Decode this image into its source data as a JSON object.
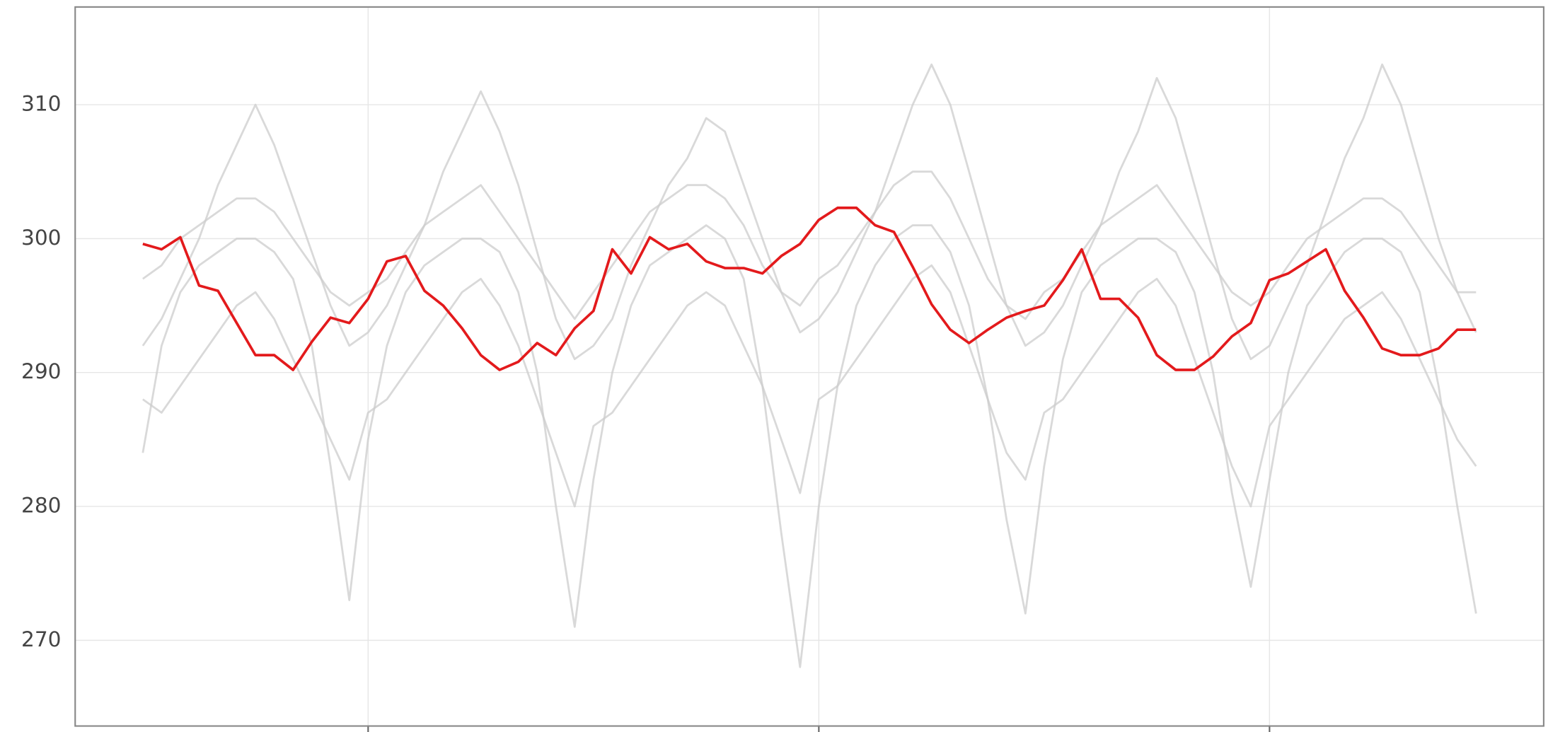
{
  "chart_data": {
    "type": "line",
    "x": [
      0,
      1,
      2,
      3,
      4,
      5,
      6,
      7,
      8,
      9,
      10,
      11,
      12,
      13,
      14,
      15,
      16,
      17,
      18,
      19,
      20,
      21,
      22,
      23,
      24,
      25,
      26,
      27,
      28,
      29,
      30,
      31,
      32,
      33,
      34,
      35,
      36,
      37,
      38,
      39,
      40,
      41,
      42,
      43,
      44,
      45,
      46,
      47,
      48,
      49,
      50,
      51,
      52,
      53,
      54,
      55,
      56,
      57,
      58,
      59,
      60,
      61,
      62,
      63,
      64,
      65,
      66,
      67,
      68,
      69,
      70,
      71
    ],
    "xlim": [
      -3.6,
      74.6
    ],
    "xticks": [
      12,
      36,
      60
    ],
    "ylim": [
      263.6,
      317.3
    ],
    "yticks": [
      270,
      280,
      290,
      300,
      310
    ],
    "grid": true,
    "series": [
      {
        "color": "#cccccc",
        "values": [
          292,
          294,
          297,
          300,
          304,
          307,
          310,
          307,
          303,
          299,
          295,
          292,
          293,
          295,
          298,
          301,
          305,
          308,
          311,
          308,
          304,
          299,
          294,
          291,
          292,
          294,
          298,
          301,
          304,
          306,
          309,
          308,
          304,
          300,
          296,
          293,
          294,
          296,
          299,
          302,
          306,
          310,
          313,
          310,
          305,
          300,
          295,
          292,
          293,
          295,
          298,
          301,
          305,
          308,
          312,
          309,
          304,
          299,
          294,
          291,
          292,
          295,
          298,
          302,
          306,
          309,
          313,
          310,
          305,
          300,
          296,
          293
        ]
      },
      {
        "color": "#cccccc",
        "values": [
          284,
          292,
          296,
          298,
          299,
          300,
          300,
          299,
          297,
          292,
          283,
          273,
          285,
          292,
          296,
          298,
          299,
          300,
          300,
          299,
          296,
          290,
          280,
          271,
          282,
          290,
          295,
          298,
          299,
          300,
          301,
          300,
          297,
          289,
          278,
          268,
          280,
          289,
          295,
          298,
          300,
          301,
          301,
          299,
          295,
          288,
          279,
          272,
          283,
          291,
          296,
          298,
          299,
          300,
          300,
          299,
          296,
          290,
          281,
          274,
          282,
          290,
          295,
          297,
          299,
          300,
          300,
          299,
          296,
          289,
          280,
          272
        ]
      },
      {
        "color": "#cccccc",
        "values": [
          297,
          298,
          300,
          301,
          302,
          303,
          303,
          302,
          300,
          298,
          296,
          295,
          296,
          297,
          299,
          301,
          302,
          303,
          304,
          302,
          300,
          298,
          296,
          294,
          296,
          298,
          300,
          302,
          303,
          304,
          304,
          303,
          301,
          298,
          296,
          295,
          297,
          298,
          300,
          302,
          304,
          305,
          305,
          303,
          300,
          297,
          295,
          294,
          296,
          297,
          299,
          301,
          302,
          303,
          304,
          302,
          300,
          298,
          296,
          295,
          296,
          298,
          300,
          301,
          302,
          303,
          303,
          302,
          300,
          298,
          296,
          296
        ]
      },
      {
        "color": "#cccccc",
        "values": [
          288,
          287,
          289,
          291,
          293,
          295,
          296,
          294,
          291,
          288,
          285,
          282,
          287,
          288,
          290,
          292,
          294,
          296,
          297,
          295,
          292,
          288,
          284,
          280,
          286,
          287,
          289,
          291,
          293,
          295,
          296,
          295,
          292,
          289,
          285,
          281,
          288,
          289,
          291,
          293,
          295,
          297,
          298,
          296,
          292,
          288,
          284,
          282,
          287,
          288,
          290,
          292,
          294,
          296,
          297,
          295,
          291,
          287,
          283,
          280,
          286,
          288,
          290,
          292,
          294,
          295,
          296,
          294,
          291,
          288,
          285,
          283
        ]
      },
      {
        "color": "#e31a1c",
        "values": [
          299.6,
          299.2,
          300.1,
          296.5,
          296.1,
          293.7,
          291.3,
          291.3,
          290.2,
          292.3,
          294.1,
          293.7,
          295.5,
          298.3,
          298.7,
          296.1,
          295.0,
          293.3,
          291.3,
          290.2,
          290.8,
          292.2,
          291.3,
          293.3,
          294.6,
          299.2,
          297.4,
          300.1,
          299.2,
          299.6,
          298.3,
          297.8,
          297.8,
          297.4,
          298.7,
          299.6,
          301.4,
          302.3,
          302.3,
          301.0,
          300.5,
          297.9,
          295.1,
          293.2,
          292.2,
          293.2,
          294.1,
          294.6,
          295.0,
          296.9,
          299.2,
          295.5,
          295.5,
          294.1,
          291.3,
          290.2,
          290.2,
          291.2,
          292.7,
          293.7,
          296.9,
          297.4,
          298.3,
          299.2,
          296.1,
          294.1,
          291.8,
          291.3,
          291.3,
          291.8,
          293.2,
          293.2
        ]
      }
    ]
  }
}
